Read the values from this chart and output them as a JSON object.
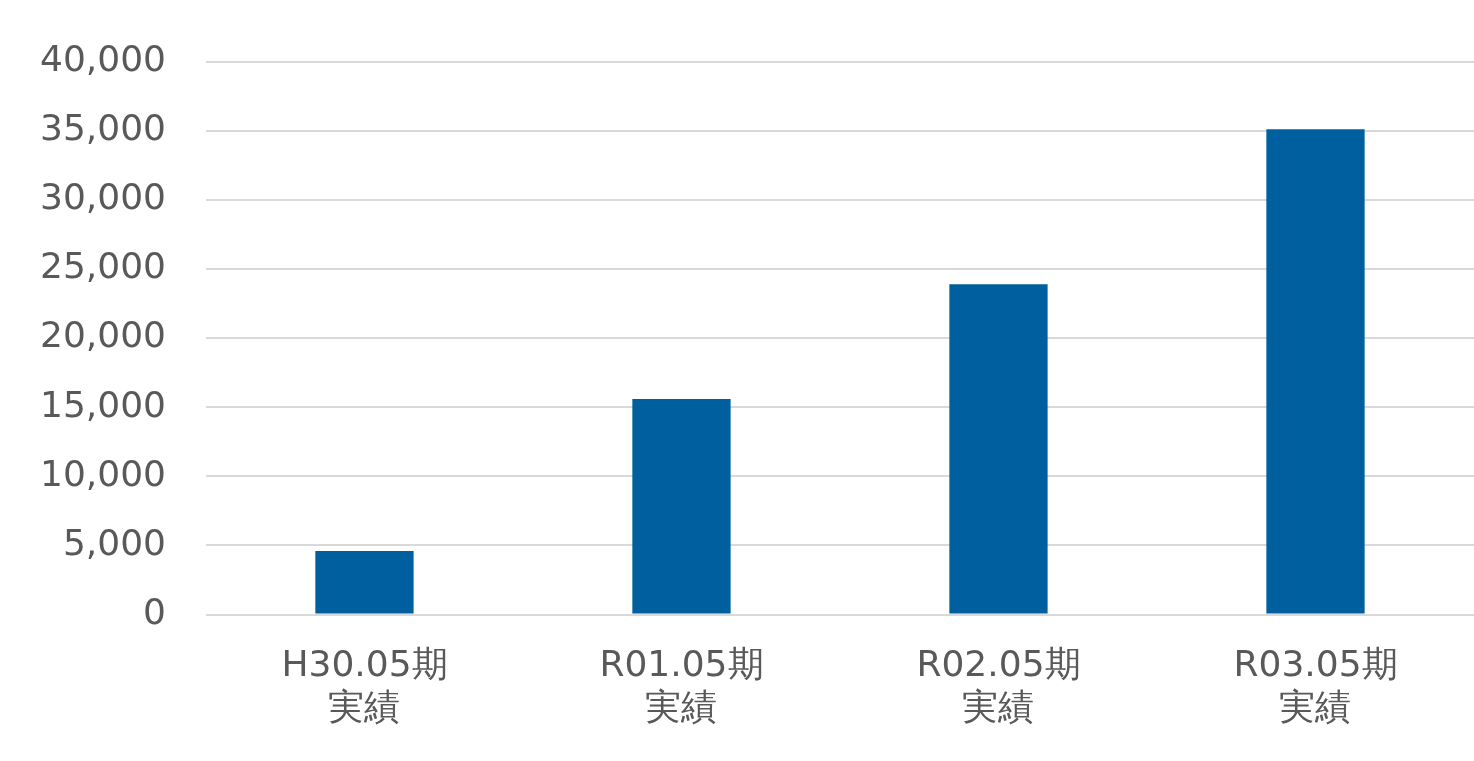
{
  "chart_data": {
    "type": "bar",
    "categories": [
      "H30.05期実績",
      "R01.05期実績",
      "R02.05期実績",
      "R03.05期実績"
    ],
    "values": [
      4600,
      15600,
      23900,
      35100
    ],
    "color": "#005f9e",
    "ylim": [
      0,
      40000
    ],
    "yticks": [
      0,
      {
        "value": 5000,
        "label": "5,000"
      },
      {
        "value": 10000,
        "label": "10,000"
      },
      {
        "value": 15000,
        "label": "15,000"
      },
      {
        "value": 20000,
        "label": "20,000"
      },
      {
        "value": 25000,
        "label": "25,000"
      },
      {
        "value": 30000,
        "label": "30,000"
      },
      {
        "value": 35000,
        "label": "35,000"
      },
      {
        "value": 40000,
        "label": "40,000"
      }
    ],
    "grid": "y",
    "legend": false
  }
}
